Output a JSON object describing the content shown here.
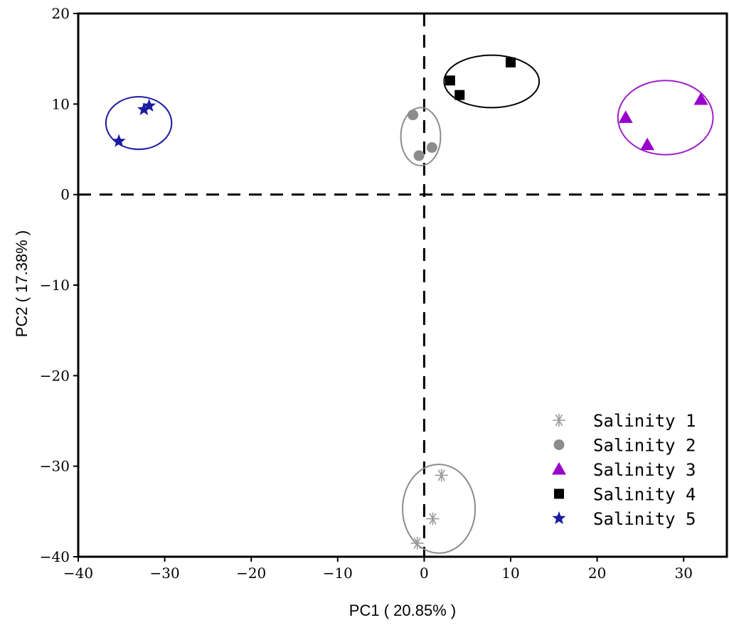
{
  "chart_data": {
    "type": "scatter",
    "xlabel": "PC1 ( 20.85% )",
    "ylabel": "PC2 ( 17.38% )",
    "xlim": [
      -40,
      35
    ],
    "ylim": [
      -40,
      20
    ],
    "x_ticks": [
      -40,
      -30,
      -20,
      -10,
      0,
      10,
      20,
      30
    ],
    "y_ticks": [
      -40,
      -30,
      -20,
      -10,
      0,
      10,
      20
    ],
    "x_tick_labels": [
      "−40",
      "−30",
      "−20",
      "−10",
      "0",
      "10",
      "20",
      "30"
    ],
    "y_tick_labels": [
      "−40",
      "−30",
      "−20",
      "−10",
      "0",
      "10",
      "20"
    ],
    "grid": false,
    "reference_lines": {
      "x": 0,
      "y": 0,
      "style": "dashed"
    },
    "legend_position": "bottom-right",
    "series": [
      {
        "name": "Salinity 1",
        "marker": "asterisk",
        "color": "#9a9a9a",
        "x": [
          2.0,
          1.0,
          -0.8
        ],
        "y": [
          -31.0,
          -35.8,
          -38.5
        ],
        "ellipse": {
          "cx": 1.7,
          "cy": -34.7,
          "rx": 4.2,
          "ry": 4.9,
          "color": "#8c8c8c"
        }
      },
      {
        "name": "Salinity 2",
        "marker": "circle",
        "color": "#8c8c8c",
        "x": [
          -1.3,
          0.9,
          -0.6
        ],
        "y": [
          8.8,
          5.2,
          4.3
        ],
        "ellipse": {
          "cx": -0.4,
          "cy": 6.4,
          "rx": 2.3,
          "ry": 3.2,
          "color": "#8c8c8c"
        }
      },
      {
        "name": "Salinity 3",
        "marker": "triangle",
        "color": "#9900cc",
        "x": [
          23.3,
          25.8,
          32.0
        ],
        "y": [
          8.5,
          5.5,
          10.5
        ],
        "ellipse": {
          "cx": 27.9,
          "cy": 8.5,
          "rx": 5.5,
          "ry": 4.1,
          "color": "#a020c8"
        }
      },
      {
        "name": "Salinity 4",
        "marker": "square",
        "color": "#000000",
        "x": [
          3.0,
          4.1,
          10.0
        ],
        "y": [
          12.6,
          11.0,
          14.6
        ],
        "ellipse": {
          "cx": 7.8,
          "cy": 12.5,
          "rx": 5.5,
          "ry": 2.9,
          "color": "#000000"
        }
      },
      {
        "name": "Salinity 5",
        "marker": "star",
        "color": "#1a1aa0",
        "x": [
          -35.3,
          -32.4,
          -31.8
        ],
        "y": [
          5.9,
          9.4,
          9.8
        ],
        "ellipse": {
          "cx": -33.0,
          "cy": 7.9,
          "rx": 3.8,
          "ry": 2.9,
          "color": "#1a1aa0"
        }
      }
    ]
  }
}
